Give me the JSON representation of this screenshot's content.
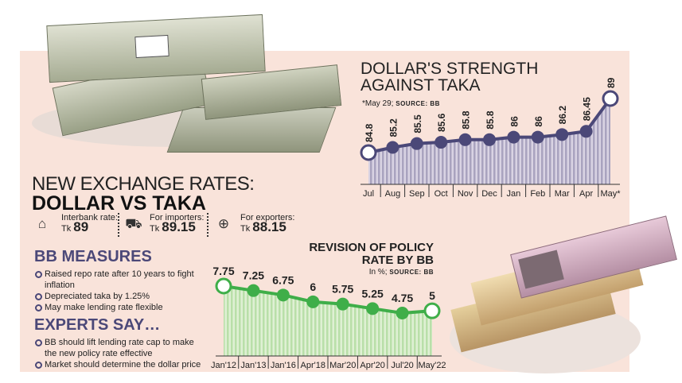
{
  "header": {
    "title_line1": "NEW EXCHANGE RATES:",
    "title_line2": "DOLLAR VS TAKA"
  },
  "rates": [
    {
      "label": "Interbank rate:",
      "currency": "Tk",
      "value": "89",
      "icon": "bank-network-icon"
    },
    {
      "label": "For importers:",
      "currency": "Tk",
      "value": "89.15",
      "icon": "cargo-truck-icon"
    },
    {
      "label": "For exporters:",
      "currency": "Tk",
      "value": "88.15",
      "icon": "globe-plane-icon"
    }
  ],
  "bb_measures": {
    "title": "BB MEASURES",
    "items": [
      "Raised repo rate after 10 years to fight inflation",
      "Depreciated taka by 1.25%",
      "May make lending rate flexible"
    ]
  },
  "experts": {
    "title": "EXPERTS SAY…",
    "items": [
      "BB should lift lending rate cap to make the new policy rate effective",
      "Market should determine the dollar price"
    ]
  },
  "colors": {
    "panel": "#f9e3da",
    "dollar_line": "#4b4878",
    "dollar_fill": "#a9a3bf",
    "policy_line": "#3fae49",
    "policy_fill": "#b9dfa9"
  },
  "chart_data": [
    {
      "type": "area",
      "title": "DOLLAR'S STRENGTH AGAINST TAKA",
      "title_line1": "DOLLAR'S STRENGTH",
      "title_line2": "AGAINST TAKA",
      "note": "*May 29;",
      "source": "SOURCE: BB",
      "categories": [
        "Jul",
        "Aug",
        "Sep",
        "Oct",
        "Nov",
        "Dec",
        "Jan",
        "Feb",
        "Mar",
        "Apr",
        "May*"
      ],
      "values": [
        84.8,
        85.2,
        85.5,
        85.6,
        85.8,
        85.8,
        86,
        86,
        86.2,
        86.45,
        89
      ],
      "labels": [
        "84.8",
        "85.2",
        "85.5",
        "85.6",
        "85.8",
        "85.8",
        "86",
        "86",
        "86.2",
        "86.45",
        "89"
      ]
    },
    {
      "type": "area",
      "title": "REVISION OF POLICY RATE BY BB",
      "title_line1": "REVISION OF POLICY",
      "title_line2": "RATE BY BB",
      "note": "In %;",
      "source": "SOURCE: BB",
      "categories": [
        "Jan'12",
        "Jan'13",
        "Jan'16",
        "Apr'18",
        "Mar'20",
        "Apr'20",
        "Jul'20",
        "May'22"
      ],
      "values": [
        7.75,
        7.25,
        6.75,
        6,
        5.75,
        5.25,
        4.75,
        5
      ],
      "labels": [
        "7.75",
        "7.25",
        "6.75",
        "6",
        "5.75",
        "5.25",
        "4.75",
        "5"
      ]
    }
  ]
}
